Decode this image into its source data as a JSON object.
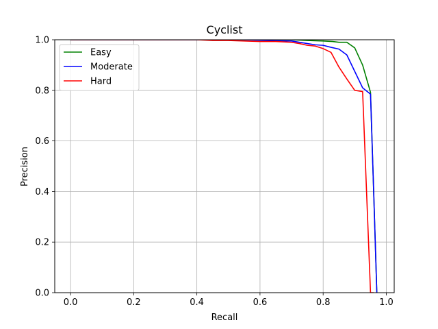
{
  "chart_data": {
    "type": "line",
    "title": "Cyclist",
    "xlabel": "Recall",
    "ylabel": "Precision",
    "xlim": [
      -0.05,
      1.025
    ],
    "ylim": [
      0,
      1.0
    ],
    "xticks": [
      "0.0",
      "0.2",
      "0.4",
      "0.6",
      "0.8",
      "1.0"
    ],
    "yticks": [
      "0.0",
      "0.2",
      "0.4",
      "0.6",
      "0.8",
      "1.0"
    ],
    "grid": true,
    "legend_position": "top-left",
    "series": [
      {
        "name": "Easy",
        "color": "#008000",
        "x": [
          0.0,
          0.1,
          0.2,
          0.3,
          0.4,
          0.45,
          0.5,
          0.55,
          0.6,
          0.65,
          0.7,
          0.75,
          0.8,
          0.83,
          0.85,
          0.875,
          0.9,
          0.925,
          0.95,
          0.965,
          0.97
        ],
        "y": [
          1.0,
          1.0,
          1.0,
          1.0,
          1.0,
          1.0,
          1.0,
          1.0,
          1.0,
          1.0,
          1.0,
          0.997,
          0.995,
          0.993,
          0.99,
          0.99,
          0.968,
          0.9,
          0.792,
          0.2,
          0.0
        ]
      },
      {
        "name": "Moderate",
        "color": "#0000ff",
        "x": [
          0.0,
          0.1,
          0.2,
          0.3,
          0.4,
          0.45,
          0.5,
          0.55,
          0.6,
          0.65,
          0.7,
          0.725,
          0.75,
          0.775,
          0.8,
          0.825,
          0.85,
          0.875,
          0.9,
          0.925,
          0.95,
          0.96,
          0.97
        ],
        "y": [
          1.0,
          1.0,
          1.0,
          1.0,
          1.0,
          1.0,
          1.0,
          1.0,
          0.998,
          0.996,
          0.995,
          0.99,
          0.985,
          0.98,
          0.978,
          0.97,
          0.963,
          0.94,
          0.875,
          0.81,
          0.785,
          0.4,
          0.0
        ]
      },
      {
        "name": "Hard",
        "color": "#ff0000",
        "x": [
          0.0,
          0.1,
          0.2,
          0.3,
          0.4,
          0.45,
          0.5,
          0.55,
          0.6,
          0.65,
          0.7,
          0.725,
          0.75,
          0.775,
          0.8,
          0.825,
          0.85,
          0.875,
          0.9,
          0.925,
          0.95,
          0.96
        ],
        "y": [
          1.0,
          1.0,
          1.0,
          1.0,
          1.0,
          0.997,
          0.997,
          0.995,
          0.993,
          0.993,
          0.99,
          0.985,
          0.978,
          0.975,
          0.965,
          0.95,
          0.892,
          0.845,
          0.8,
          0.795,
          0.0,
          0.0
        ]
      }
    ]
  }
}
